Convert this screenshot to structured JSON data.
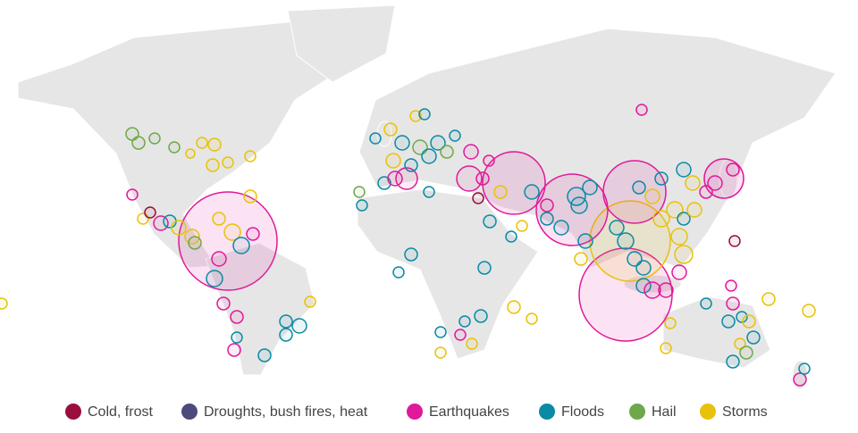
{
  "legend": {
    "items": [
      {
        "label": "Cold, frost",
        "color": "#9b0d3c"
      },
      {
        "label": "Droughts, bush fires, heat",
        "color": "#4c4a7a"
      },
      {
        "label": "Earthquakes",
        "color": "#e0199a"
      },
      {
        "label": "Floods",
        "color": "#0a8aa3"
      },
      {
        "label": "Hail",
        "color": "#6ea84a"
      },
      {
        "label": "Storms",
        "color": "#e8c20a"
      }
    ]
  }
}
